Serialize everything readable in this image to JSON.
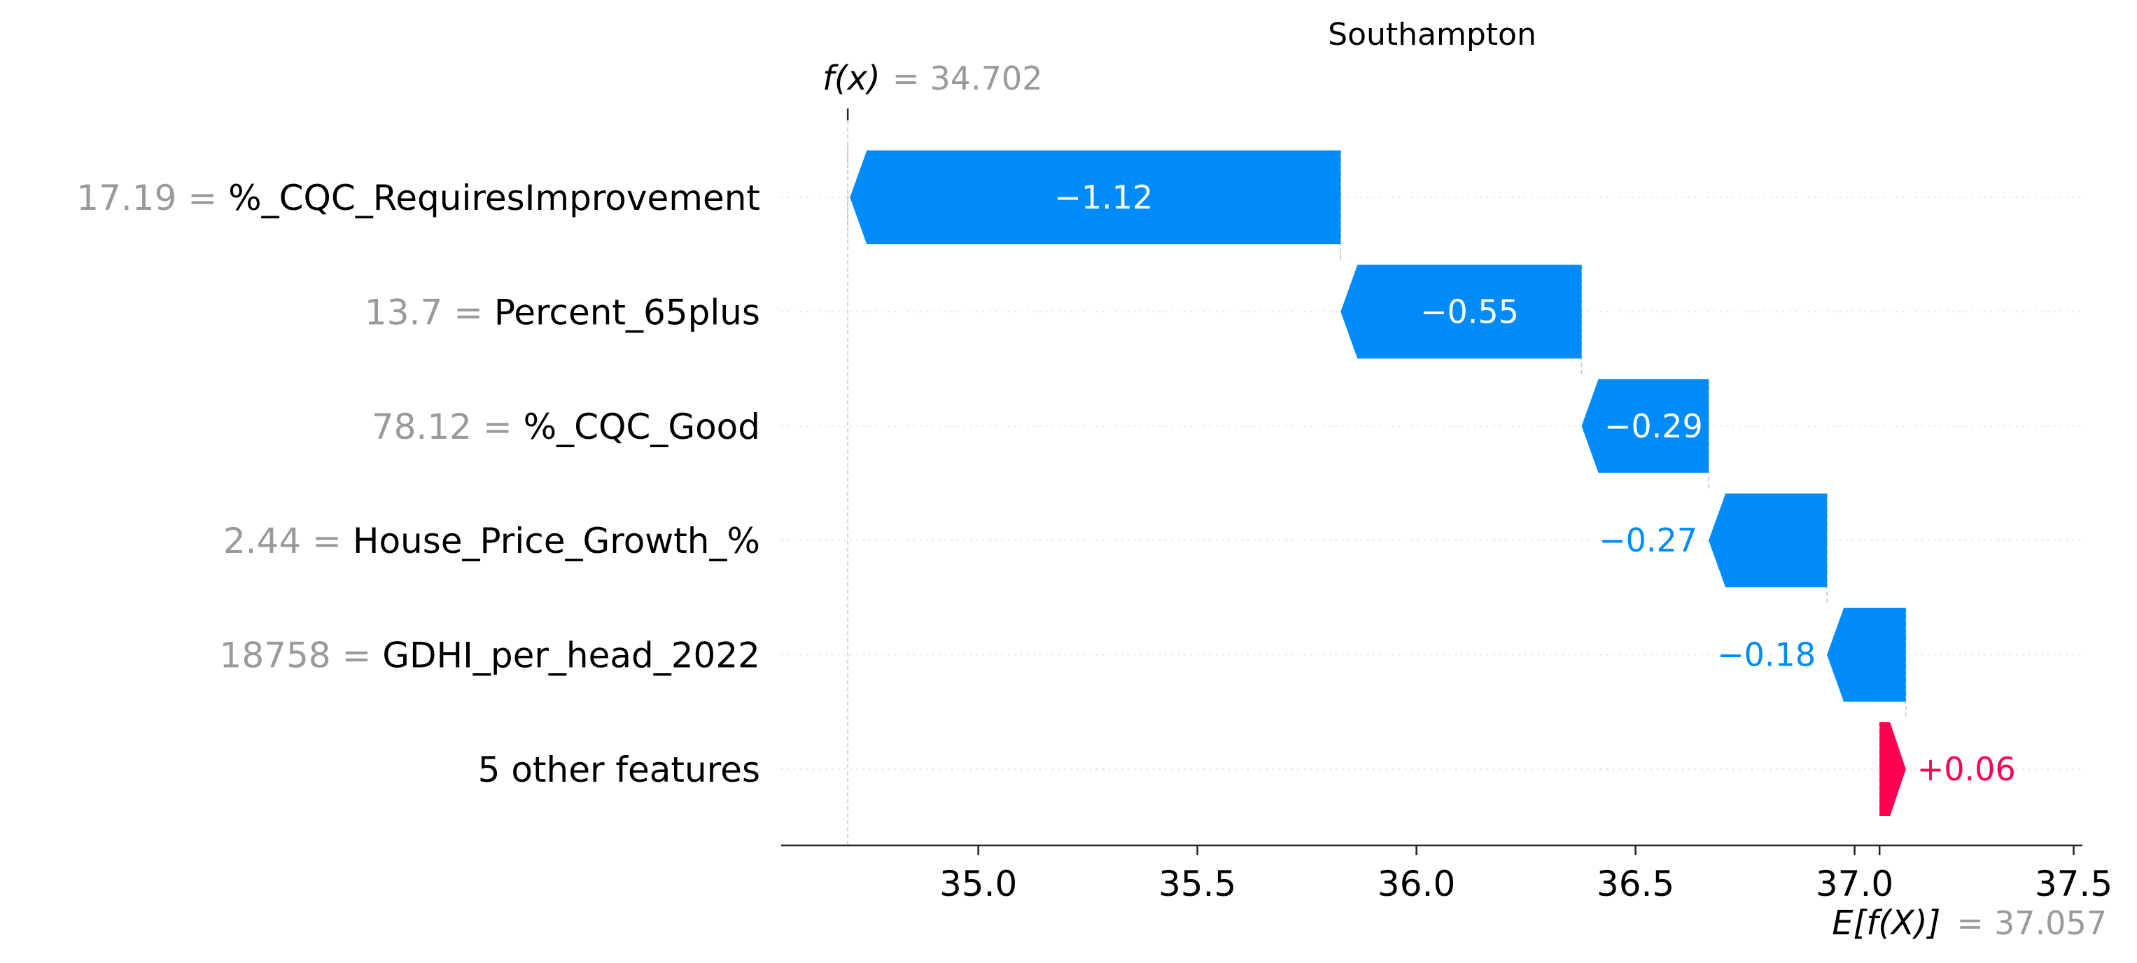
{
  "chart_data": {
    "type": "waterfall",
    "title": "Southampton",
    "fx": {
      "label": "f(x)",
      "value": 34.702,
      "value_text": "34.702"
    },
    "base": {
      "label": "E[f(X)]",
      "value": 37.057,
      "value_text": "37.057"
    },
    "features": [
      {
        "value_text": "17.19",
        "name": "%_CQC_RequiresImprovement",
        "contribution": -1.12,
        "label": "−1.12"
      },
      {
        "value_text": "13.7",
        "name": "Percent_65plus",
        "contribution": -0.55,
        "label": "−0.55"
      },
      {
        "value_text": "78.12",
        "name": "%_CQC_Good",
        "contribution": -0.29,
        "label": "−0.29"
      },
      {
        "value_text": "2.44",
        "name": "House_Price_Growth_%",
        "contribution": -0.27,
        "label": "−0.27"
      },
      {
        "value_text": "18758",
        "name": "GDHI_per_head_2022",
        "contribution": -0.18,
        "label": "−0.18"
      },
      {
        "value_text": "",
        "name": "5 other features",
        "contribution": 0.06,
        "label": "+0.06"
      }
    ],
    "xlim": [
      34.55,
      37.52
    ],
    "xticks": [
      35.0,
      35.5,
      36.0,
      36.5,
      37.0,
      37.5
    ],
    "xtick_labels": [
      "35.0",
      "35.5",
      "36.0",
      "36.5",
      "37.0",
      "37.5"
    ],
    "colors": {
      "negative": "#008bfb",
      "positive": "#ff0051",
      "value_text": "#9a9a9a"
    }
  }
}
